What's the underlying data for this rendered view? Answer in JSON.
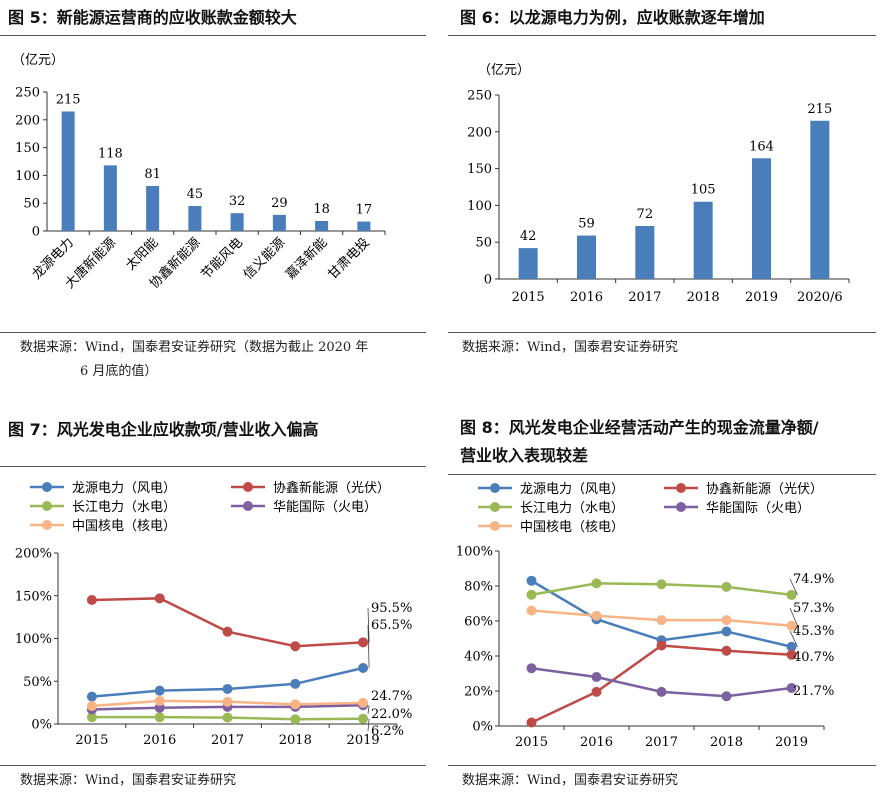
{
  "charts": [
    {
      "title": "图 5：新能源运营商的应收账款金额较大",
      "source_lines": [
        "数据来源：Wind，国泰君安证券研究（数据为截止 2020 年",
        "6 月底的值）"
      ],
      "chart_data": {
        "type": "bar",
        "unit": "（亿元）",
        "categories": [
          "龙源电力",
          "大唐新能源",
          "太阳能",
          "协鑫新能源",
          "节能风电",
          "信义能源",
          "嘉泽新能",
          "甘肃电投"
        ],
        "values": [
          215,
          118,
          81,
          45,
          32,
          29,
          18,
          17
        ],
        "ylim": [
          0,
          250
        ],
        "yticks": [
          0,
          50,
          100,
          150,
          200,
          250
        ],
        "bar_color": "#4a7ebb",
        "grid": false
      }
    },
    {
      "title": "图 6：以龙源电力为例，应收账款逐年增加",
      "source_lines": [
        "数据来源：Wind，国泰君安证券研究"
      ],
      "chart_data": {
        "type": "bar",
        "unit": "（亿元）",
        "categories": [
          "2015",
          "2016",
          "2017",
          "2018",
          "2019",
          "2020/6"
        ],
        "values": [
          42,
          59,
          72,
          105,
          164,
          215
        ],
        "ylim": [
          0,
          250
        ],
        "yticks": [
          0,
          50,
          100,
          150,
          200,
          250
        ],
        "bar_color": "#4a7ebb",
        "grid": false
      }
    },
    {
      "title": "图 7：风光发电企业应收款项/营业收入偏高",
      "source_lines": [
        "数据来源：Wind，国泰君安证券研究"
      ],
      "chart_data": {
        "type": "line",
        "categories": [
          "2015",
          "2016",
          "2017",
          "2018",
          "2019"
        ],
        "ylim": [
          0,
          200
        ],
        "yticks": [
          0,
          50,
          100,
          150,
          200
        ],
        "ytick_labels": [
          "0%",
          "50%",
          "100%",
          "150%",
          "200%"
        ],
        "legend_position": "top",
        "series": [
          {
            "name": "龙源电力（风电）",
            "color": "#4a7ebb",
            "values": [
              32,
              39,
              41,
              47,
              65.5
            ],
            "end_label": "65.5%"
          },
          {
            "name": "协鑫新能源（光伏）",
            "color": "#be4b48",
            "values": [
              145,
              147,
              108,
              91,
              95.5
            ],
            "end_label": "95.5%"
          },
          {
            "name": "长江电力（水电）",
            "color": "#98b954",
            "values": [
              8,
              8,
              7.5,
              5.5,
              6.2
            ],
            "end_label": "6.2%"
          },
          {
            "name": "华能国际（火电）",
            "color": "#7d60a0",
            "values": [
              17,
              19,
              20,
              20,
              22.0
            ],
            "end_label": "22.0%"
          },
          {
            "name": "中国核电（核电）",
            "color": "#f9b486",
            "values": [
              21,
              27,
              26,
              23,
              24.7
            ],
            "end_label": "24.7%"
          }
        ]
      }
    },
    {
      "title_lines": [
        "图 8：风光发电企业经营活动产生的现金流量净额/",
        "营业收入表现较差"
      ],
      "source_lines": [
        "数据来源：Wind，国泰君安证券研究"
      ],
      "chart_data": {
        "type": "line",
        "categories": [
          "2015",
          "2016",
          "2017",
          "2018",
          "2019"
        ],
        "ylim": [
          0,
          100
        ],
        "yticks": [
          0,
          20,
          40,
          60,
          80,
          100
        ],
        "ytick_labels": [
          "0%",
          "20%",
          "40%",
          "60%",
          "80%",
          "100%"
        ],
        "legend_position": "top",
        "series": [
          {
            "name": "龙源电力（风电）",
            "color": "#4a7ebb",
            "values": [
              83,
              61,
              49,
              54,
              45.3
            ],
            "end_label": "45.3%"
          },
          {
            "name": "协鑫新能源（光伏）",
            "color": "#be4b48",
            "values": [
              2,
              19.5,
              46,
              43,
              40.7
            ],
            "end_label": "40.7%"
          },
          {
            "name": "长江电力（水电）",
            "color": "#98b954",
            "values": [
              75,
              81.5,
              81,
              79.5,
              74.9
            ],
            "end_label": "74.9%"
          },
          {
            "name": "华能国际（火电）",
            "color": "#7d60a0",
            "values": [
              33,
              28,
              19.5,
              17,
              21.7
            ],
            "end_label": "21.7%"
          },
          {
            "name": "中国核电（核电）",
            "color": "#f9b486",
            "values": [
              66,
              63,
              60.5,
              60.5,
              57.3
            ],
            "end_label": "57.3%"
          }
        ]
      }
    }
  ]
}
